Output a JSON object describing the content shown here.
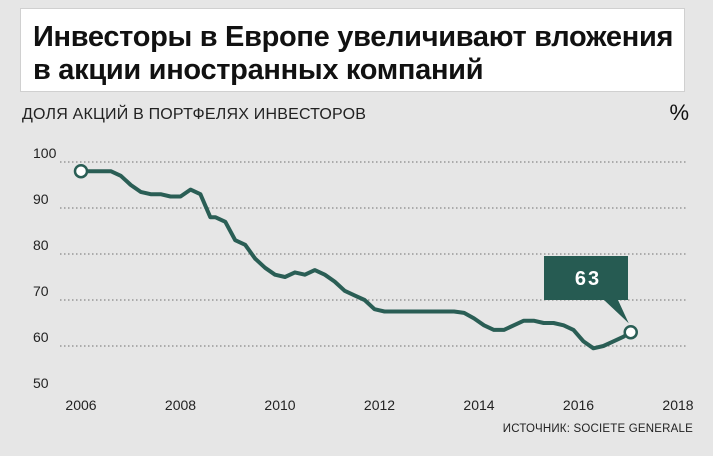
{
  "title": {
    "line1": "Инвесторы в Европе увеличивают вложения",
    "line2": "в акции иностранных компаний"
  },
  "subtitle": "ДОЛЯ АКЦИЙ В ПОРТФЕЛЯХ ИНВЕСТОРОВ",
  "unit": "%",
  "source": "ИСТОЧНИК: SOCIETE GENERALE",
  "colors": {
    "line": "#2a5e55",
    "callout": "#265b52",
    "grid": "#888888",
    "background": "#e6e6e6"
  },
  "chart_data": {
    "type": "line",
    "title": "Инвесторы в Европе увеличивают вложения в акции иностранных компаний",
    "ylabel": "ДОЛЯ АКЦИЙ В ПОРТФЕЛЯХ ИНВЕСТОРОВ",
    "unit": "%",
    "xlim": [
      2006,
      2018
    ],
    "ylim": [
      50,
      100
    ],
    "x_ticks": [
      2006,
      2008,
      2010,
      2012,
      2014,
      2016,
      2018
    ],
    "y_ticks": [
      50,
      60,
      70,
      80,
      90,
      100
    ],
    "grid": "horizontal dotted",
    "series": [
      {
        "x": [
          2006.0,
          2006.3,
          2006.6,
          2006.8,
          2007.0,
          2007.2,
          2007.4,
          2007.6,
          2007.8,
          2008.0,
          2008.2,
          2008.4,
          2008.6,
          2008.7,
          2008.9,
          2009.1,
          2009.3,
          2009.5,
          2009.7,
          2009.9,
          2010.1,
          2010.3,
          2010.5,
          2010.7,
          2010.9,
          2011.1,
          2011.3,
          2011.5,
          2011.7,
          2011.9,
          2012.1,
          2012.3,
          2012.5,
          2012.7,
          2012.9,
          2013.1,
          2013.3,
          2013.5,
          2013.7,
          2013.9,
          2014.1,
          2014.3,
          2014.5,
          2014.7,
          2014.9,
          2015.1,
          2015.3,
          2015.5,
          2015.7,
          2015.9,
          2016.1,
          2016.3,
          2016.5,
          2016.7,
          2016.9,
          2017.05
        ],
        "y": [
          98,
          98,
          98,
          97,
          95,
          93.5,
          93,
          93,
          92.5,
          92.5,
          94,
          93,
          88,
          88,
          87,
          83,
          82,
          79,
          77,
          75.5,
          75,
          76,
          75.5,
          76.5,
          75.5,
          74,
          72,
          71,
          70,
          68,
          67.5,
          67.5,
          67.5,
          67.5,
          67.5,
          67.5,
          67.5,
          67.5,
          67.2,
          66,
          64.5,
          63.5,
          63.5,
          64.5,
          65.5,
          65.5,
          65,
          65,
          64.5,
          63.5,
          61,
          59.5,
          60,
          61,
          62,
          63
        ]
      }
    ],
    "callout": {
      "label": "63",
      "x": 2017.05,
      "y": 63
    },
    "start_marker": {
      "x": 2006.0,
      "y": 98
    }
  }
}
